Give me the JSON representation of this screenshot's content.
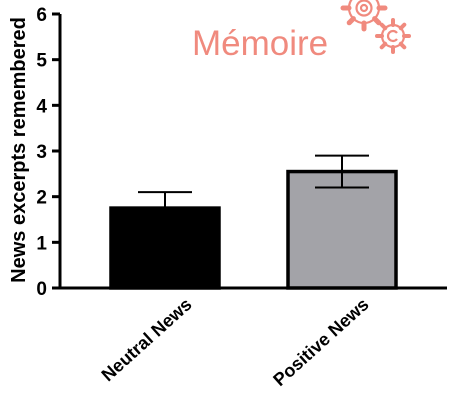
{
  "chart_data": {
    "type": "bar",
    "title": "Mémoire",
    "ylabel": "News excerpts remembered",
    "xlabel": "",
    "ylim": [
      0,
      6
    ],
    "yticks": [
      0,
      1,
      2,
      3,
      4,
      5,
      6
    ],
    "categories": [
      "Neutral News",
      "Positive News"
    ],
    "values": [
      1.75,
      2.55
    ],
    "error_upper": [
      0.35,
      0.35
    ],
    "error_lower": [
      0.35,
      0.35
    ],
    "bar_colors": [
      "#000000",
      "#a3a3a8"
    ],
    "grid": false,
    "legend": "none"
  },
  "colors": {
    "title": "#f08a7e",
    "axis": "#000000"
  },
  "icons": [
    "gears-icon"
  ]
}
